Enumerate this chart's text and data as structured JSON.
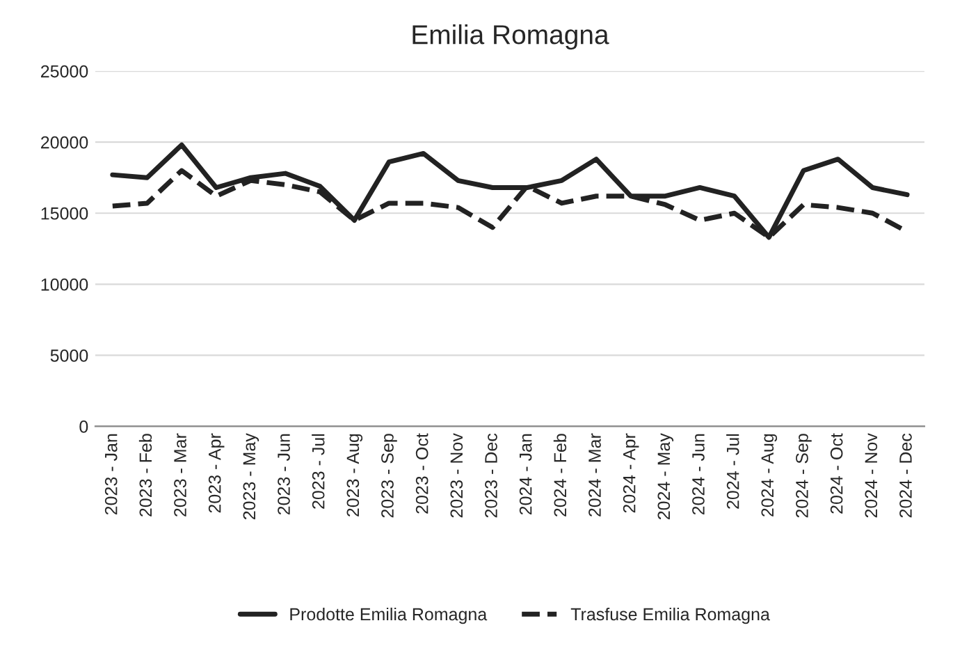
{
  "chart_data": {
    "type": "line",
    "title": "Emilia Romagna",
    "categories": [
      "2023 - Jan",
      "2023 - Feb",
      "2023 - Mar",
      "2023 - Apr",
      "2023 - May",
      "2023 - Jun",
      "2023 - Jul",
      "2023 - Aug",
      "2023 - Sep",
      "2023 - Oct",
      "2023 - Nov",
      "2023 - Dec",
      "2024 - Jan",
      "2024 - Feb",
      "2024 - Mar",
      "2024 - Apr",
      "2024 - May",
      "2024 - Jun",
      "2024 - Jul",
      "2024 - Aug",
      "2024 - Sep",
      "2024 - Oct",
      "2024 - Nov",
      "2024 - Dec"
    ],
    "series": [
      {
        "name": "Prodotte Emilia Romagna",
        "color": "#222222",
        "line_style": "solid",
        "values": [
          17700,
          17500,
          19800,
          16800,
          17500,
          17800,
          16900,
          14500,
          18600,
          19200,
          17300,
          16800,
          16800,
          17300,
          18800,
          16200,
          16200,
          16800,
          16200,
          13300,
          18000,
          18800,
          16800,
          16300
        ]
      },
      {
        "name": "Trasfuse Emilia Romagna",
        "color": "#222222",
        "line_style": "dashed",
        "values": [
          15500,
          15700,
          18000,
          16200,
          17300,
          17000,
          16500,
          14500,
          15700,
          15700,
          15400,
          14000,
          16900,
          15700,
          16200,
          16200,
          15600,
          14500,
          15000,
          13300,
          15600,
          15400,
          15000,
          13700
        ]
      }
    ],
    "ylim": [
      0,
      25000
    ],
    "yticks": [
      0,
      5000,
      10000,
      15000,
      20000,
      25000
    ],
    "grid": "y",
    "legend": "bottom",
    "marker": "none"
  }
}
